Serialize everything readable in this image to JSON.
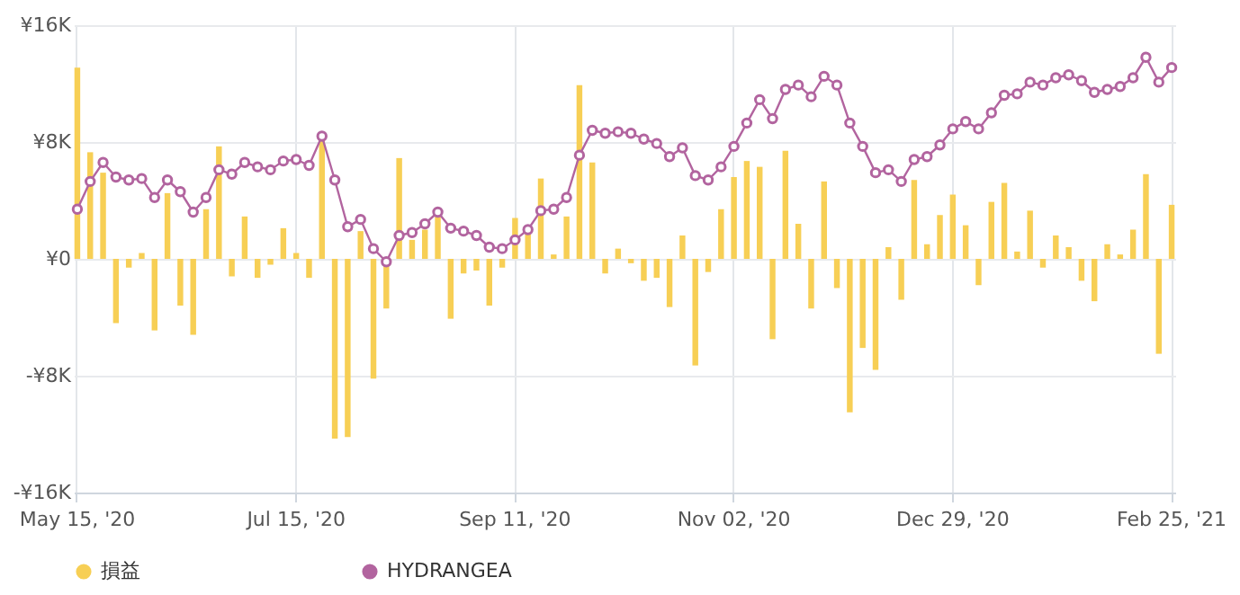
{
  "chart_data": {
    "type": "bar",
    "categories": [
      "May 15, '20",
      null,
      null,
      null,
      null,
      null,
      null,
      null,
      null,
      null,
      null,
      null,
      null,
      null,
      null,
      null,
      null,
      "Jul 15, '20",
      null,
      null,
      null,
      null,
      null,
      null,
      null,
      null,
      null,
      null,
      null,
      null,
      null,
      null,
      null,
      null,
      "Sep 11, '20",
      null,
      null,
      null,
      null,
      null,
      null,
      null,
      null,
      null,
      null,
      null,
      null,
      null,
      null,
      null,
      null,
      "Nov 02, '20",
      null,
      null,
      null,
      null,
      null,
      null,
      null,
      null,
      null,
      null,
      null,
      null,
      null,
      null,
      null,
      null,
      "Dec 29, '20",
      null,
      null,
      null,
      null,
      null,
      null,
      null,
      null,
      null,
      null,
      null,
      null,
      null,
      null,
      null,
      null,
      "Feb 25, '21"
    ],
    "series": [
      {
        "name": "損益",
        "color": "#f7cf55",
        "values": [
          13.1,
          7.3,
          5.9,
          -4.4,
          -0.6,
          0.4,
          -4.9,
          4.5,
          -3.2,
          -5.2,
          3.4,
          7.7,
          -1.2,
          2.9,
          -1.3,
          -0.4,
          2.1,
          0.4,
          -1.3,
          8.4,
          -12.3,
          -12.2,
          1.9,
          -8.2,
          -3.4,
          6.9,
          1.3,
          2.0,
          3.0,
          -4.1,
          -1.0,
          -0.8,
          -3.2,
          -0.6,
          2.8,
          1.8,
          5.5,
          0.3,
          2.9,
          11.9,
          6.6,
          -1.0,
          0.7,
          -0.3,
          -1.5,
          -1.3,
          -3.3,
          1.6,
          -7.3,
          -0.9,
          3.4,
          5.6,
          6.7,
          6.3,
          -5.5,
          7.4,
          2.4,
          -3.4,
          5.3,
          -2.0,
          -10.5,
          -6.1,
          -7.6,
          0.8,
          -2.8,
          5.4,
          1.0,
          3.0,
          4.4,
          2.3,
          -1.8,
          3.9,
          5.2,
          0.5,
          3.3,
          -0.6,
          1.6,
          0.8,
          -1.5,
          -2.9,
          1.0,
          0.3,
          2.0,
          5.8,
          -6.5,
          3.7
        ]
      },
      {
        "name": "HYDRANGEA",
        "type": "line",
        "color": "#b2649f",
        "marker": "circle",
        "values": [
          3.4,
          5.3,
          6.6,
          5.6,
          5.4,
          5.5,
          4.2,
          5.4,
          4.6,
          3.2,
          4.2,
          6.1,
          5.8,
          6.6,
          6.3,
          6.1,
          6.7,
          6.8,
          6.4,
          8.4,
          5.4,
          2.2,
          2.7,
          0.7,
          -0.2,
          1.6,
          1.8,
          2.4,
          3.2,
          2.1,
          1.9,
          1.6,
          0.8,
          0.7,
          1.3,
          2.0,
          3.3,
          3.4,
          4.2,
          7.1,
          8.8,
          8.6,
          8.7,
          8.6,
          8.2,
          7.9,
          7.0,
          7.6,
          5.7,
          5.4,
          6.3,
          7.7,
          9.3,
          10.9,
          9.6,
          11.6,
          11.9,
          11.1,
          12.5,
          11.9,
          9.3,
          7.7,
          5.9,
          6.1,
          5.3,
          6.8,
          7.0,
          7.8,
          8.9,
          9.4,
          8.9,
          10.0,
          11.2,
          11.3,
          12.1,
          11.9,
          12.4,
          12.6,
          12.2,
          11.4,
          11.6,
          11.8,
          12.4,
          13.8,
          12.1,
          13.1
        ]
      }
    ],
    "ylim": [
      -16,
      16
    ],
    "yticks": [
      {
        "value": -16,
        "label": "-¥16K"
      },
      {
        "value": -8,
        "label": "-¥8K"
      },
      {
        "value": 0,
        "label": "¥0"
      },
      {
        "value": 8,
        "label": "¥8K"
      },
      {
        "value": 16,
        "label": "¥16K"
      }
    ],
    "grid": true,
    "legend": "bottom"
  }
}
